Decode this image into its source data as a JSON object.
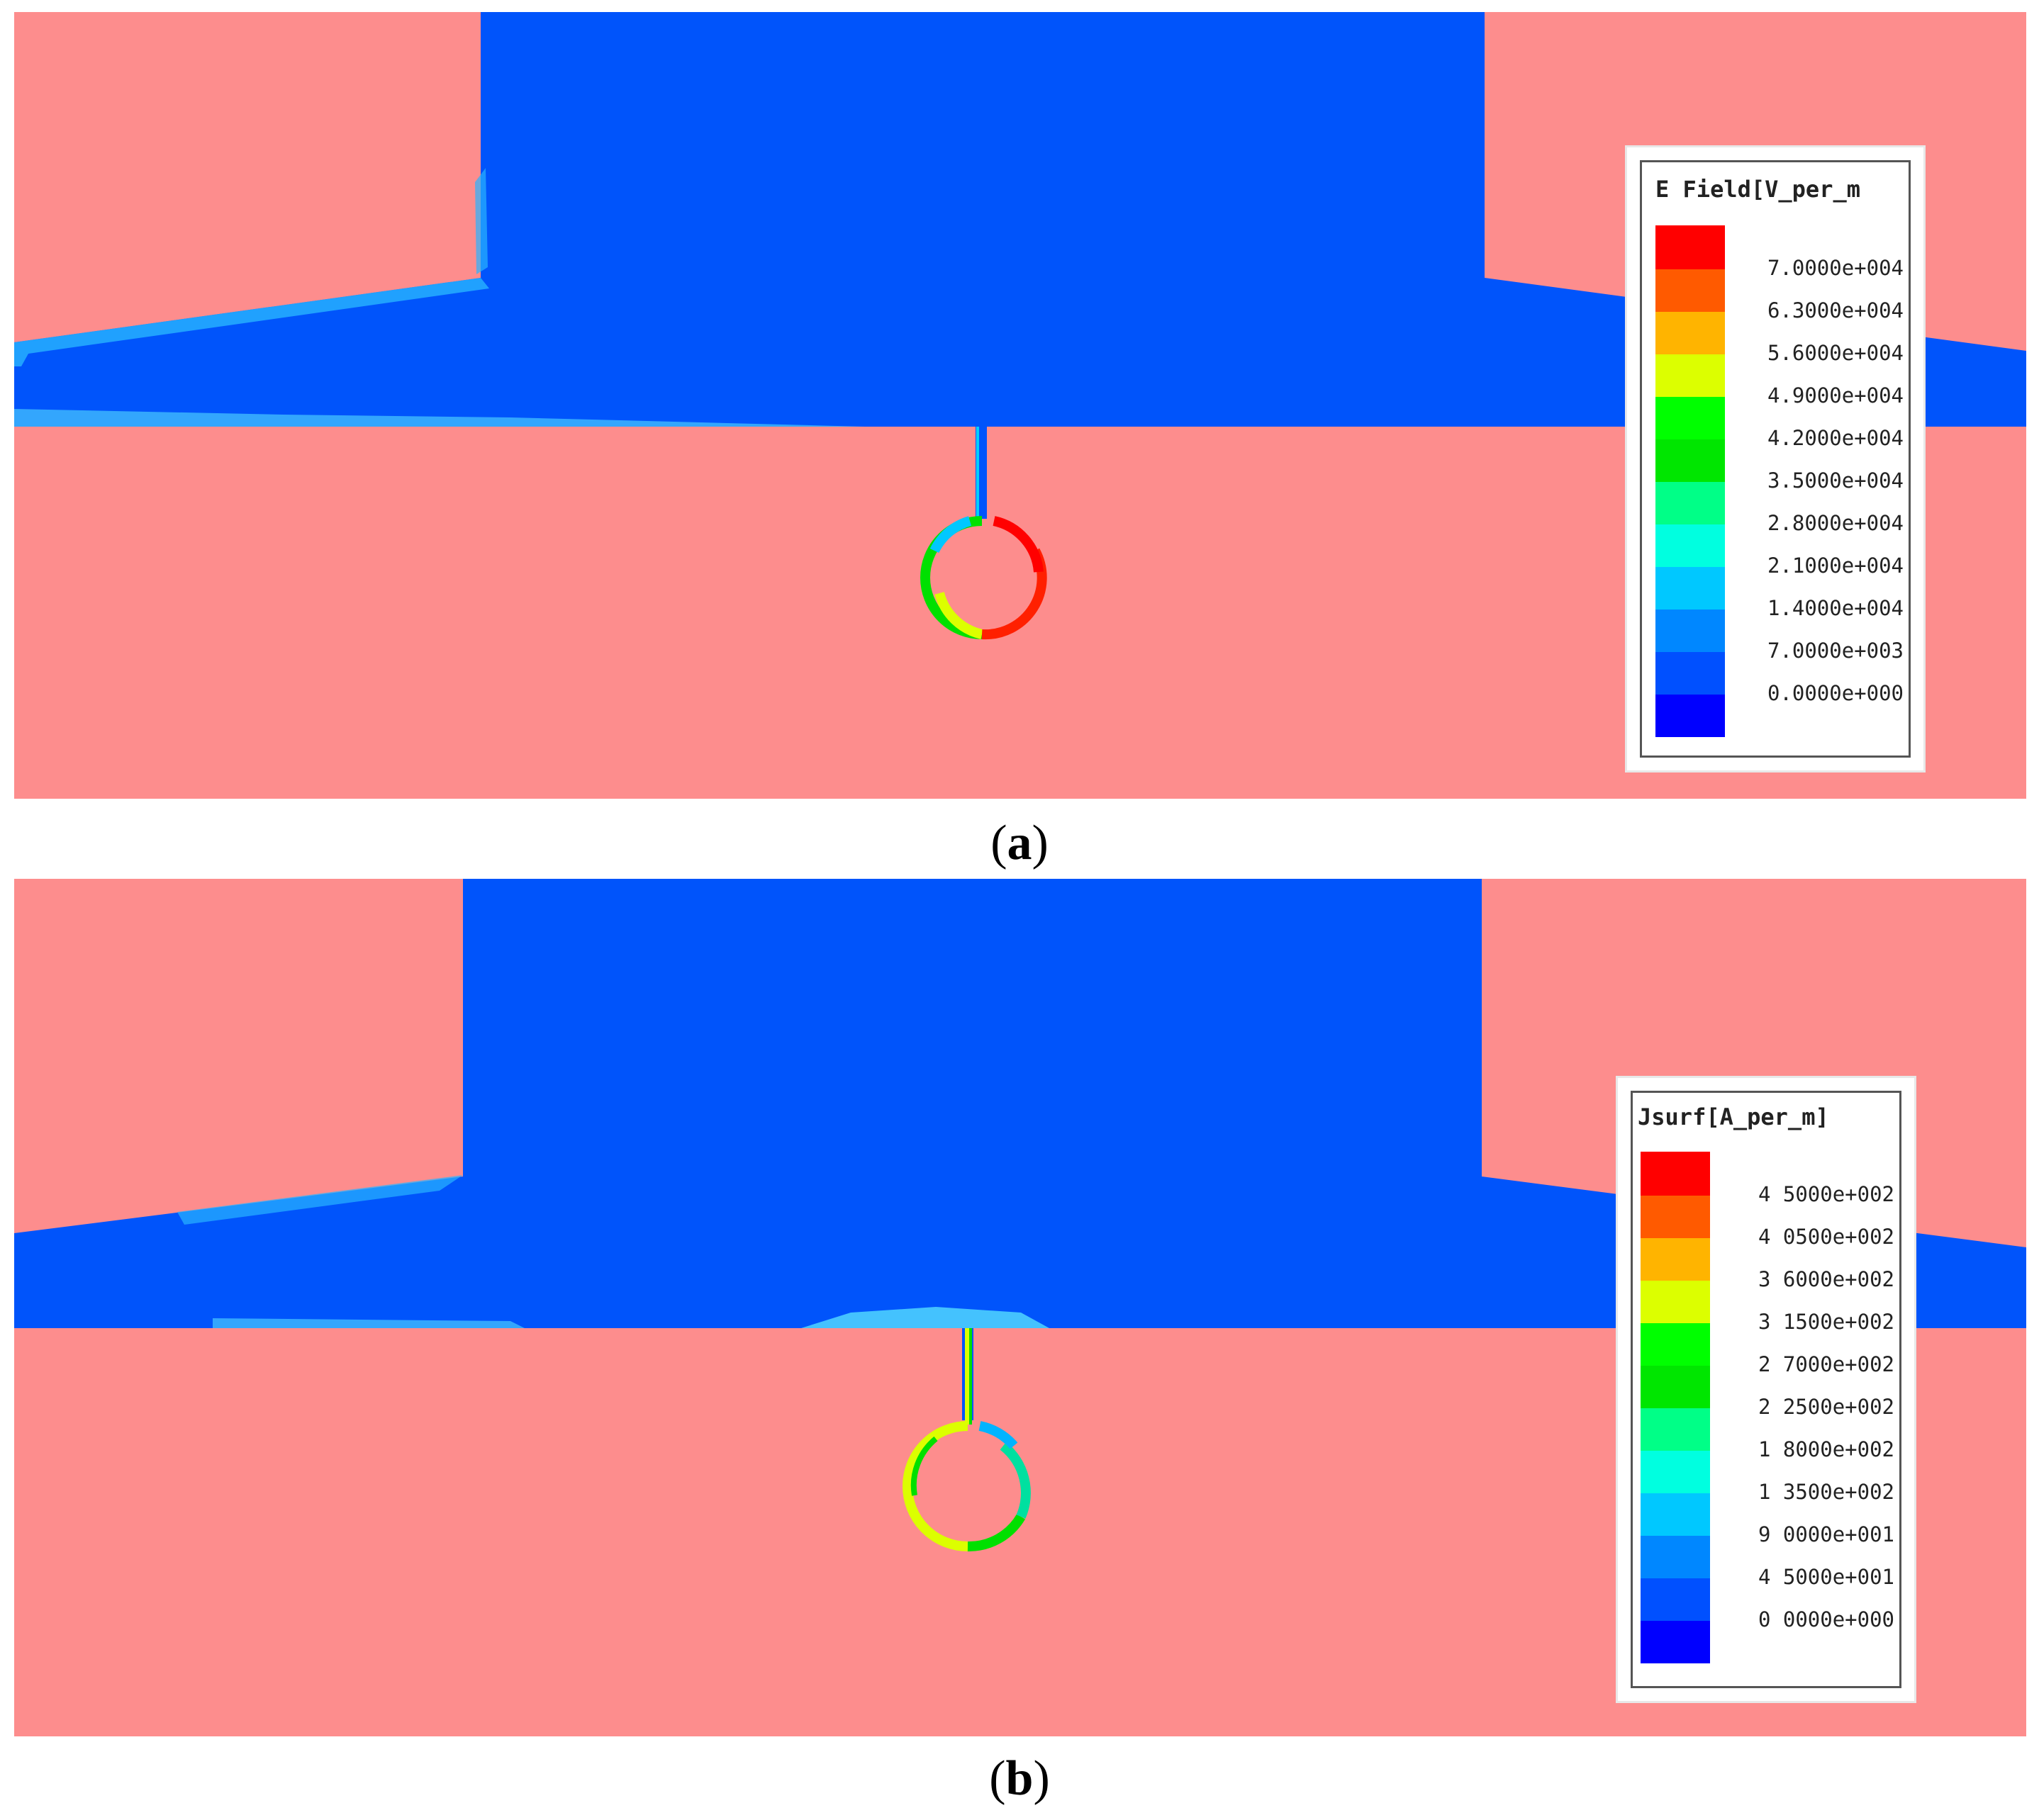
{
  "colors": {
    "metal": "#fd8d8d",
    "field_low": "#0054fb",
    "scale": [
      "#ff0000",
      "#ff5a00",
      "#ffb400",
      "#dcff00",
      "#00ff00",
      "#00e600",
      "#00ff87",
      "#00ffe0",
      "#00c8ff",
      "#0087ff",
      "#0050ff",
      "#0000ff"
    ]
  },
  "panels": [
    {
      "caption_letter": "a",
      "legend": {
        "title": "E Field[V_per_m",
        "values": [
          "7.0000e+004",
          "6.3000e+004",
          "5.6000e+004",
          "4.9000e+004",
          "4.2000e+004",
          "3.5000e+004",
          "2.8000e+004",
          "2.1000e+004",
          "1.4000e+004",
          "7.0000e+003",
          "0.0000e+000"
        ]
      }
    },
    {
      "caption_letter": "b",
      "legend": {
        "title": "Jsurf[A_per_m]",
        "values": [
          "4 5000e+002",
          "4 0500e+002",
          "3 6000e+002",
          "3 1500e+002",
          "2 7000e+002",
          "2 2500e+002",
          "1 8000e+002",
          "1 3500e+002",
          "9 0000e+001",
          "4 5000e+001",
          "0 0000e+000"
        ]
      }
    }
  ]
}
